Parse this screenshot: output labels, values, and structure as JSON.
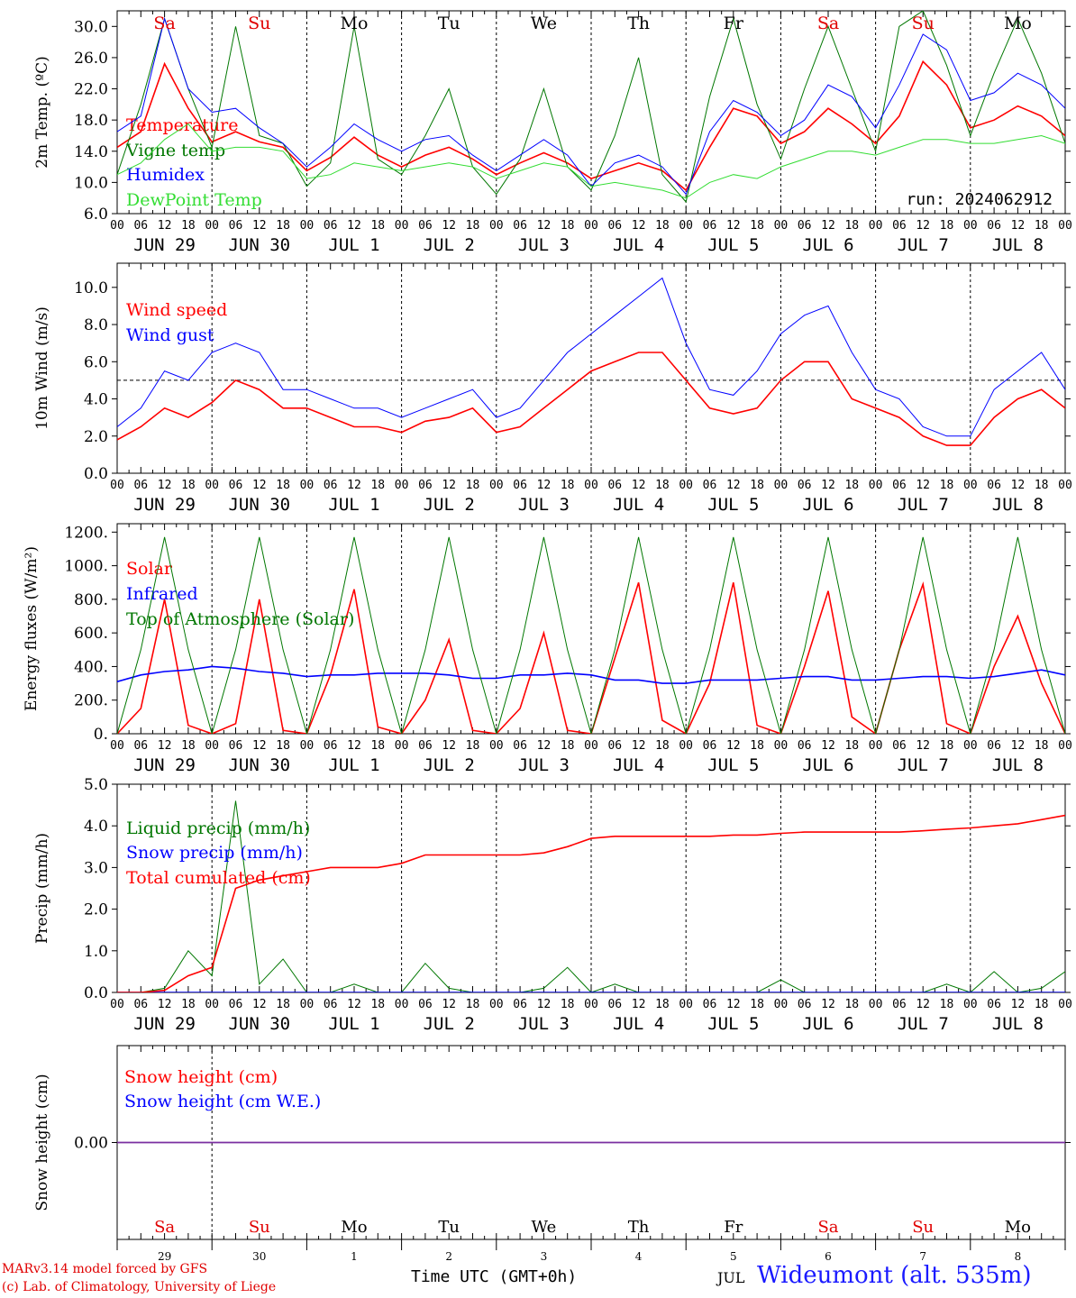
{
  "run_label": "run: 2024062912",
  "hour_ticks": [
    "00",
    "06",
    "12",
    "18"
  ],
  "final_hour_tick": "00",
  "date_labels": [
    "JUN 29",
    "JUN 30",
    "JUL  1",
    "JUL  2",
    "JUL  3",
    "JUL  4",
    "JUL  5",
    "JUL  6",
    "JUL  7",
    "JUL  8"
  ],
  "weekdays": [
    {
      "name": "Sa",
      "color": "#e00000"
    },
    {
      "name": "Su",
      "color": "#e00000"
    },
    {
      "name": "Mo",
      "color": "#000000"
    },
    {
      "name": "Tu",
      "color": "#000000"
    },
    {
      "name": "We",
      "color": "#000000"
    },
    {
      "name": "Th",
      "color": "#000000"
    },
    {
      "name": "Fr",
      "color": "#000000"
    },
    {
      "name": "Sa",
      "color": "#e00000"
    },
    {
      "name": "Su",
      "color": "#e00000"
    },
    {
      "name": "Mo",
      "color": "#000000"
    }
  ],
  "bottom_day_numbers": [
    "29",
    "30",
    "1",
    "2",
    "3",
    "4",
    "5",
    "6",
    "7",
    "8"
  ],
  "footer": {
    "model": "MARv3.14 model forced by GFS",
    "lab": "(c) Lab. of Climatology, University of Liege",
    "time_label": "Time UTC (GMT+0h)",
    "month_label": "JUL",
    "station": "Wideumont (alt. 535m)"
  },
  "chart_data": [
    {
      "type": "line",
      "ylabel": "2m Temp. (ºC)",
      "ylim": [
        6,
        32
      ],
      "yticks": [
        "6.0",
        "10.0",
        "14.0",
        "18.0",
        "22.0",
        "26.0",
        "30.0"
      ],
      "x": [
        0,
        6,
        12,
        18,
        24,
        30,
        36,
        42,
        48,
        54,
        60,
        66,
        72,
        78,
        84,
        90,
        96,
        102,
        108,
        114,
        120,
        126,
        132,
        138,
        144,
        150,
        156,
        162,
        168,
        174,
        180,
        186,
        192,
        198,
        204,
        210,
        216,
        222,
        228,
        234,
        240
      ],
      "series": [
        {
          "name": "Temperature",
          "color": "#ff0000",
          "values": [
            14.5,
            16.5,
            25.2,
            19.5,
            15.2,
            16.5,
            15.2,
            14.5,
            11.5,
            13.2,
            15.8,
            13.5,
            12.0,
            13.5,
            14.5,
            13.0,
            11.0,
            12.5,
            13.8,
            12.5,
            10.5,
            11.5,
            12.5,
            11.5,
            9.0,
            14.5,
            19.5,
            18.5,
            15.0,
            16.5,
            19.5,
            17.5,
            15.0,
            18.5,
            25.5,
            22.5,
            17.0,
            18.0,
            19.8,
            18.5,
            16.0
          ]
        },
        {
          "name": "Vigne temp",
          "color": "#007700",
          "values": [
            11.0,
            20.0,
            31.0,
            22.0,
            14.5,
            30.0,
            16.0,
            15.0,
            9.5,
            12.5,
            30.0,
            13.0,
            11.0,
            16.0,
            22.0,
            12.0,
            8.5,
            13.0,
            22.0,
            12.0,
            9.0,
            16.0,
            26.0,
            11.0,
            7.5,
            21.0,
            31.0,
            20.0,
            13.0,
            22.0,
            30.0,
            22.0,
            14.0,
            30.0,
            32.0,
            25.0,
            16.0,
            24.0,
            31.0,
            24.0,
            15.0
          ]
        },
        {
          "name": "Humidex",
          "color": "#0000ff",
          "values": [
            16.5,
            18.5,
            31.0,
            22.0,
            19.0,
            19.5,
            17.0,
            15.0,
            12.0,
            14.5,
            17.5,
            15.5,
            14.0,
            15.5,
            16.0,
            13.5,
            11.5,
            13.5,
            15.5,
            13.5,
            9.5,
            12.5,
            13.5,
            12.0,
            8.5,
            16.5,
            20.5,
            19.0,
            16.0,
            18.0,
            22.5,
            21.0,
            17.0,
            22.5,
            29.0,
            27.0,
            20.5,
            21.5,
            24.0,
            22.5,
            19.5
          ]
        },
        {
          "name": "DewPoint Temp",
          "color": "#33dd33",
          "values": [
            11.0,
            12.5,
            15.5,
            17.5,
            14.0,
            14.5,
            14.5,
            14.0,
            10.5,
            11.0,
            12.5,
            12.0,
            11.5,
            12.0,
            12.5,
            12.0,
            10.5,
            11.5,
            12.5,
            12.0,
            9.5,
            10.0,
            9.5,
            9.0,
            8.0,
            10.0,
            11.0,
            10.5,
            12.0,
            13.0,
            14.0,
            14.0,
            13.5,
            14.5,
            15.5,
            15.5,
            15.0,
            15.0,
            15.5,
            16.0,
            15.0
          ]
        }
      ]
    },
    {
      "type": "line",
      "ylabel": "10m Wind (m/s)",
      "ylim": [
        0,
        11.3
      ],
      "yticks": [
        "0.0",
        "2.0",
        "4.0",
        "6.0",
        "8.0",
        "10.0"
      ],
      "reference_line": 5,
      "x": [
        0,
        6,
        12,
        18,
        24,
        30,
        36,
        42,
        48,
        54,
        60,
        66,
        72,
        78,
        84,
        90,
        96,
        102,
        108,
        114,
        120,
        126,
        132,
        138,
        144,
        150,
        156,
        162,
        168,
        174,
        180,
        186,
        192,
        198,
        204,
        210,
        216,
        222,
        228,
        234,
        240
      ],
      "series": [
        {
          "name": "Wind speed",
          "color": "#ff0000",
          "values": [
            1.8,
            2.5,
            3.5,
            3.0,
            3.8,
            5.0,
            4.5,
            3.5,
            3.5,
            3.0,
            2.5,
            2.5,
            2.2,
            2.8,
            3.0,
            3.5,
            2.2,
            2.5,
            3.5,
            4.5,
            5.5,
            6.0,
            6.5,
            6.5,
            5.0,
            3.5,
            3.2,
            3.5,
            5.0,
            6.0,
            6.0,
            4.0,
            3.5,
            3.0,
            2.0,
            1.5,
            1.5,
            3.0,
            4.0,
            4.5,
            3.5
          ]
        },
        {
          "name": "Wind gust",
          "color": "#0000ff",
          "values": [
            2.5,
            3.5,
            5.5,
            5.0,
            6.5,
            7.0,
            6.5,
            4.5,
            4.5,
            4.0,
            3.5,
            3.5,
            3.0,
            3.5,
            4.0,
            4.5,
            3.0,
            3.5,
            5.0,
            6.5,
            7.5,
            8.5,
            9.5,
            10.5,
            7.0,
            4.5,
            4.2,
            5.5,
            7.5,
            8.5,
            9.0,
            6.5,
            4.5,
            4.0,
            2.5,
            2.0,
            2.0,
            4.5,
            5.5,
            6.5,
            4.5
          ]
        }
      ]
    },
    {
      "type": "line",
      "ylabel": "Energy fluxes (W/m²)",
      "ylim": [
        0,
        1250
      ],
      "yticks": [
        "0.",
        "200.",
        "400.",
        "600.",
        "800.",
        "1000.",
        "1200."
      ],
      "x": [
        0,
        6,
        12,
        18,
        24,
        30,
        36,
        42,
        48,
        54,
        60,
        66,
        72,
        78,
        84,
        90,
        96,
        102,
        108,
        114,
        120,
        126,
        132,
        138,
        144,
        150,
        156,
        162,
        168,
        174,
        180,
        186,
        192,
        198,
        204,
        210,
        216,
        222,
        228,
        234,
        240
      ],
      "series": [
        {
          "name": "Solar",
          "color": "#ff0000",
          "values": [
            0,
            150,
            800,
            50,
            0,
            60,
            800,
            20,
            0,
            350,
            860,
            40,
            0,
            200,
            560,
            20,
            0,
            150,
            600,
            20,
            0,
            450,
            900,
            80,
            0,
            300,
            900,
            50,
            0,
            400,
            850,
            100,
            0,
            500,
            890,
            60,
            0,
            400,
            700,
            300,
            0
          ]
        },
        {
          "name": "Infrared",
          "color": "#0000ff",
          "values": [
            310,
            350,
            370,
            380,
            400,
            390,
            370,
            360,
            340,
            350,
            350,
            360,
            360,
            360,
            350,
            330,
            330,
            350,
            350,
            360,
            350,
            320,
            320,
            300,
            300,
            320,
            320,
            320,
            330,
            340,
            340,
            320,
            320,
            330,
            340,
            340,
            330,
            340,
            360,
            380,
            350
          ]
        },
        {
          "name": "Top of Atmosphere (Solar)",
          "color": "#007700",
          "values": [
            0,
            500,
            1170,
            500,
            0,
            500,
            1170,
            500,
            0,
            500,
            1170,
            500,
            0,
            500,
            1170,
            500,
            0,
            500,
            1170,
            500,
            0,
            500,
            1170,
            500,
            0,
            500,
            1170,
            500,
            0,
            500,
            1170,
            500,
            0,
            500,
            1170,
            500,
            0,
            500,
            1170,
            500,
            0
          ]
        }
      ]
    },
    {
      "type": "line",
      "ylabel": "Precip (mm/h)",
      "ylim": [
        0,
        5
      ],
      "yticks": [
        "0.0",
        "1.0",
        "2.0",
        "3.0",
        "4.0",
        "5.0"
      ],
      "x": [
        0,
        6,
        12,
        18,
        24,
        30,
        36,
        42,
        48,
        54,
        60,
        66,
        72,
        78,
        84,
        90,
        96,
        102,
        108,
        114,
        120,
        126,
        132,
        138,
        144,
        150,
        156,
        162,
        168,
        174,
        180,
        186,
        192,
        198,
        204,
        210,
        216,
        222,
        228,
        234,
        240
      ],
      "series": [
        {
          "name": "Liquid precip (mm/h)",
          "color": "#007700",
          "values": [
            0,
            0,
            0.1,
            1.0,
            0.4,
            4.6,
            0.2,
            0.8,
            0,
            0,
            0.2,
            0,
            0,
            0.7,
            0.1,
            0,
            0,
            0,
            0.1,
            0.6,
            0,
            0.2,
            0,
            0,
            0,
            0,
            0,
            0,
            0.3,
            0,
            0,
            0,
            0,
            0,
            0,
            0.2,
            0,
            0.5,
            0,
            0.1,
            0.5
          ]
        },
        {
          "name": "Snow precip (mm/h)",
          "color": "#0000ff",
          "values": [
            0,
            0,
            0,
            0,
            0,
            0,
            0,
            0,
            0,
            0,
            0,
            0,
            0,
            0,
            0,
            0,
            0,
            0,
            0,
            0,
            0,
            0,
            0,
            0,
            0,
            0,
            0,
            0,
            0,
            0,
            0,
            0,
            0,
            0,
            0,
            0,
            0,
            0,
            0,
            0,
            0
          ]
        },
        {
          "name": "Total cumulated (cm)",
          "color": "#ff0000",
          "values": [
            0,
            0,
            0.05,
            0.4,
            0.6,
            2.5,
            2.7,
            2.8,
            2.9,
            3.0,
            3.0,
            3.0,
            3.1,
            3.3,
            3.3,
            3.3,
            3.3,
            3.3,
            3.35,
            3.5,
            3.7,
            3.75,
            3.75,
            3.75,
            3.75,
            3.75,
            3.78,
            3.78,
            3.82,
            3.85,
            3.85,
            3.85,
            3.85,
            3.85,
            3.88,
            3.92,
            3.95,
            4.0,
            4.05,
            4.15,
            4.25
          ]
        }
      ]
    },
    {
      "type": "line",
      "ylabel": "Snow height (cm)",
      "ylim": [
        -1,
        1
      ],
      "yticks": [
        "0.00"
      ],
      "x": [
        0,
        240
      ],
      "series": [
        {
          "name": "Snow height (cm)",
          "color": "#ff0000",
          "values": [
            0,
            0
          ]
        },
        {
          "name": "Snow height (cm W.E.)",
          "color": "#0000ff",
          "values": [
            0,
            0
          ]
        }
      ]
    }
  ]
}
